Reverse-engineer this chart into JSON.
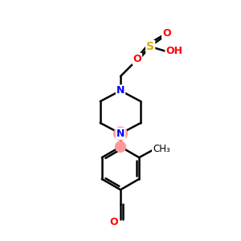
{
  "bg_color": "#ffffff",
  "atom_colors": {
    "N": "#0000ff",
    "O": "#ff0000",
    "S": "#ddaa00",
    "C": "#000000"
  },
  "highlight_color": "#ff9999",
  "line_color": "#000000",
  "line_width": 1.8,
  "figsize": [
    3.0,
    3.0
  ],
  "dpi": 100,
  "xlim": [
    0,
    10
  ],
  "ylim": [
    0,
    10
  ]
}
